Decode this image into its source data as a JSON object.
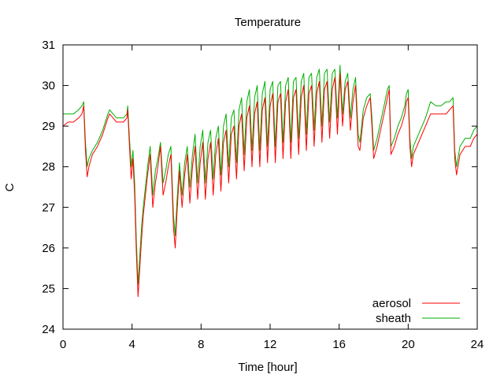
{
  "chart_data": {
    "type": "line",
    "title": "Temperature",
    "xlabel": "Time [hour]",
    "ylabel": "C",
    "xlim": [
      0,
      24
    ],
    "ylim": [
      24,
      31
    ],
    "xticks": [
      0,
      4,
      8,
      12,
      16,
      20,
      24
    ],
    "yticks": [
      24,
      25,
      26,
      27,
      28,
      29,
      30,
      31
    ],
    "grid": false,
    "legend": "bottom-right",
    "series": [
      {
        "name": "aerosol",
        "color": "#ff0000",
        "x": [
          0,
          0.3,
          0.6,
          0.9,
          1.1,
          1.2,
          1.3,
          1.4,
          1.5,
          1.7,
          2.0,
          2.3,
          2.6,
          2.7,
          2.9,
          3.1,
          3.3,
          3.5,
          3.7,
          3.75,
          3.85,
          3.95,
          4.05,
          4.15,
          4.25,
          4.35,
          4.45,
          4.55,
          4.65,
          4.75,
          4.9,
          5.05,
          5.2,
          5.35,
          5.5,
          5.65,
          5.8,
          5.95,
          6.1,
          6.25,
          6.4,
          6.5,
          6.6,
          6.75,
          6.9,
          7.05,
          7.2,
          7.35,
          7.5,
          7.65,
          7.8,
          7.95,
          8.1,
          8.25,
          8.4,
          8.55,
          8.7,
          8.85,
          9.0,
          9.15,
          9.3,
          9.45,
          9.6,
          9.75,
          9.9,
          10.05,
          10.2,
          10.35,
          10.5,
          10.65,
          10.8,
          10.95,
          11.1,
          11.25,
          11.4,
          11.55,
          11.7,
          11.85,
          12.0,
          12.15,
          12.3,
          12.45,
          12.6,
          12.75,
          12.9,
          13.05,
          13.2,
          13.35,
          13.5,
          13.65,
          13.8,
          13.95,
          14.1,
          14.25,
          14.4,
          14.55,
          14.7,
          14.85,
          15.0,
          15.15,
          15.3,
          15.45,
          15.6,
          15.75,
          15.9,
          16.05,
          16.2,
          16.35,
          16.5,
          16.65,
          16.8,
          16.95,
          17.1,
          17.2,
          17.4,
          17.6,
          17.8,
          17.9,
          18.0,
          18.2,
          18.4,
          18.6,
          18.8,
          18.9,
          19.0,
          19.2,
          19.4,
          19.6,
          19.8,
          19.9,
          20.0,
          20.1,
          20.2,
          20.3,
          20.5,
          20.8,
          21.0,
          21.3,
          21.6,
          21.9,
          22.2,
          22.4,
          22.6,
          22.7,
          22.8,
          23.0,
          23.3,
          23.6,
          23.8,
          24.0
        ],
        "y": [
          29.0,
          29.1,
          29.1,
          29.2,
          29.3,
          29.5,
          28.4,
          27.75,
          28.0,
          28.3,
          28.5,
          28.8,
          29.2,
          29.3,
          29.2,
          29.1,
          29.1,
          29.1,
          29.2,
          29.4,
          28.5,
          27.7,
          28.2,
          27.3,
          25.9,
          24.8,
          25.5,
          26.2,
          26.8,
          27.2,
          27.8,
          28.3,
          27.0,
          27.6,
          28.0,
          28.5,
          27.3,
          27.6,
          28.0,
          28.3,
          26.5,
          26.0,
          26.8,
          27.9,
          27.0,
          27.8,
          28.3,
          27.1,
          28.0,
          28.5,
          27.2,
          28.1,
          28.6,
          27.2,
          28.2,
          28.6,
          27.3,
          28.3,
          28.7,
          27.4,
          28.6,
          28.9,
          27.6,
          28.8,
          29.0,
          27.7,
          29.0,
          29.3,
          27.9,
          29.2,
          29.5,
          28.0,
          29.3,
          29.6,
          28.0,
          29.4,
          29.7,
          28.1,
          29.5,
          29.8,
          28.1,
          29.6,
          29.8,
          28.2,
          29.6,
          29.9,
          28.2,
          29.7,
          29.9,
          28.3,
          29.7,
          30.0,
          28.4,
          29.8,
          30.0,
          28.5,
          29.8,
          30.1,
          28.6,
          29.9,
          30.1,
          28.7,
          29.9,
          30.2,
          28.8,
          30.3,
          29.0,
          29.9,
          30.1,
          28.9,
          29.6,
          30.0,
          28.5,
          28.4,
          29.2,
          29.5,
          29.7,
          29.0,
          28.2,
          28.5,
          28.9,
          29.3,
          29.7,
          29.9,
          28.3,
          28.5,
          28.8,
          29.0,
          29.3,
          29.6,
          29.7,
          28.5,
          28.0,
          28.3,
          28.5,
          28.8,
          29.0,
          29.3,
          29.3,
          29.3,
          29.3,
          29.4,
          29.5,
          28.2,
          27.8,
          28.3,
          28.5,
          28.5,
          28.7,
          28.8
        ]
      },
      {
        "name": "sheath",
        "color": "#00b000",
        "x": [
          0,
          0.3,
          0.6,
          0.9,
          1.1,
          1.2,
          1.3,
          1.4,
          1.5,
          1.7,
          2.0,
          2.3,
          2.6,
          2.7,
          2.9,
          3.1,
          3.3,
          3.5,
          3.7,
          3.75,
          3.85,
          3.95,
          4.05,
          4.15,
          4.25,
          4.35,
          4.45,
          4.55,
          4.65,
          4.75,
          4.9,
          5.05,
          5.2,
          5.35,
          5.5,
          5.65,
          5.8,
          5.95,
          6.1,
          6.25,
          6.4,
          6.5,
          6.6,
          6.75,
          6.9,
          7.05,
          7.2,
          7.35,
          7.5,
          7.65,
          7.8,
          7.95,
          8.1,
          8.25,
          8.4,
          8.55,
          8.7,
          8.85,
          9.0,
          9.15,
          9.3,
          9.45,
          9.6,
          9.75,
          9.9,
          10.05,
          10.2,
          10.35,
          10.5,
          10.65,
          10.8,
          10.95,
          11.1,
          11.25,
          11.4,
          11.55,
          11.7,
          11.85,
          12.0,
          12.15,
          12.3,
          12.45,
          12.6,
          12.75,
          12.9,
          13.05,
          13.2,
          13.35,
          13.5,
          13.65,
          13.8,
          13.95,
          14.1,
          14.25,
          14.4,
          14.55,
          14.7,
          14.85,
          15.0,
          15.15,
          15.3,
          15.45,
          15.6,
          15.75,
          15.9,
          16.05,
          16.2,
          16.35,
          16.5,
          16.65,
          16.8,
          16.95,
          17.1,
          17.2,
          17.4,
          17.6,
          17.8,
          17.9,
          18.0,
          18.2,
          18.4,
          18.6,
          18.8,
          18.9,
          19.0,
          19.2,
          19.4,
          19.6,
          19.8,
          19.9,
          20.0,
          20.1,
          20.2,
          20.3,
          20.5,
          20.8,
          21.0,
          21.3,
          21.6,
          21.9,
          22.2,
          22.4,
          22.6,
          22.7,
          22.8,
          23.0,
          23.3,
          23.6,
          23.8,
          24.0
        ],
        "y": [
          29.3,
          29.3,
          29.3,
          29.4,
          29.5,
          29.6,
          28.6,
          28.0,
          28.2,
          28.4,
          28.6,
          28.9,
          29.3,
          29.4,
          29.3,
          29.2,
          29.2,
          29.2,
          29.3,
          29.5,
          28.7,
          28.0,
          28.4,
          27.6,
          26.2,
          25.1,
          25.8,
          26.5,
          27.0,
          27.4,
          28.0,
          28.5,
          27.3,
          27.9,
          28.2,
          28.6,
          27.6,
          27.9,
          28.3,
          28.5,
          26.8,
          26.3,
          27.1,
          28.1,
          27.3,
          28.1,
          28.5,
          27.5,
          28.3,
          28.8,
          27.6,
          28.5,
          28.9,
          27.6,
          28.6,
          28.9,
          27.7,
          28.7,
          29.0,
          27.8,
          29.0,
          29.3,
          28.0,
          29.2,
          29.4,
          28.1,
          29.4,
          29.7,
          28.3,
          29.6,
          29.9,
          28.4,
          29.7,
          30.0,
          28.4,
          29.8,
          30.1,
          28.5,
          29.9,
          30.1,
          28.5,
          30.0,
          30.1,
          28.6,
          30.0,
          30.2,
          28.6,
          30.1,
          30.2,
          28.7,
          30.1,
          30.3,
          28.8,
          30.2,
          30.3,
          28.9,
          30.2,
          30.4,
          29.0,
          30.3,
          30.4,
          29.1,
          30.3,
          30.4,
          29.2,
          30.5,
          29.3,
          30.1,
          30.3,
          29.2,
          29.9,
          30.2,
          28.8,
          28.6,
          29.4,
          29.7,
          29.8,
          29.2,
          28.4,
          28.7,
          29.1,
          29.5,
          29.9,
          30.0,
          28.5,
          28.7,
          29.0,
          29.2,
          29.5,
          29.8,
          29.9,
          28.7,
          28.2,
          28.5,
          28.7,
          29.0,
          29.2,
          29.6,
          29.5,
          29.5,
          29.6,
          29.6,
          29.7,
          28.4,
          28.0,
          28.5,
          28.7,
          28.7,
          28.9,
          29.0
        ]
      }
    ]
  }
}
